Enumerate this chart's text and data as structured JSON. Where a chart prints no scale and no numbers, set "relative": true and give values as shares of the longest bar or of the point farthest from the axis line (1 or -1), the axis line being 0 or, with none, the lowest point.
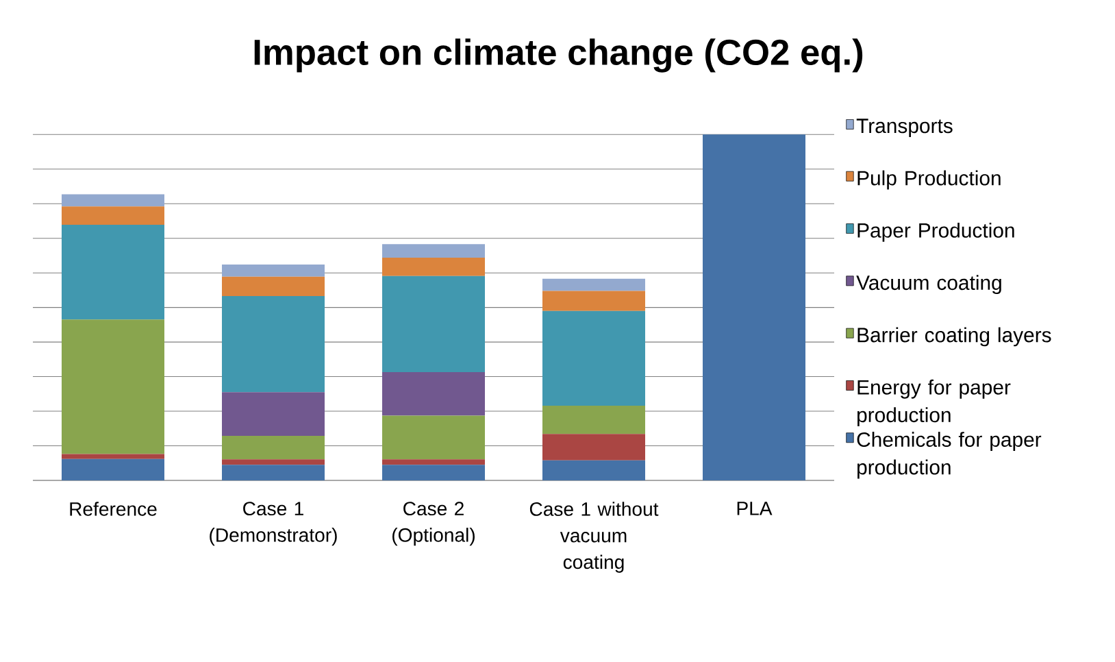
{
  "chart_data": {
    "type": "bar",
    "title": "Impact on climate change (CO2 eq.)",
    "stacked": true,
    "relative": true,
    "grid": "y",
    "legend": "right",
    "categories": [
      "Reference",
      "Case 1 (Demonstrator)",
      "Case 2 (Optional)",
      "Case 1 without vacuum coating",
      "PLA"
    ],
    "series": [
      {
        "name": "Chemicals for paper production",
        "color": "#4572a7",
        "values": [
          0.062,
          0.045,
          0.045,
          0.058,
          1
        ]
      },
      {
        "name": "Energy for paper production",
        "color": "#aa4643",
        "values": [
          0.014,
          0.016,
          0.016,
          0.076,
          0
        ]
      },
      {
        "name": "Barrier coating layers",
        "color": "#89a54e",
        "values": [
          0.389,
          0.068,
          0.126,
          0.082,
          0
        ]
      },
      {
        "name": "Vacuum coating",
        "color": "#71588f",
        "values": [
          0,
          0.126,
          0.126,
          0,
          0
        ]
      },
      {
        "name": "Paper Production",
        "color": "#4198af",
        "values": [
          0.274,
          0.278,
          0.278,
          0.274,
          0
        ]
      },
      {
        "name": "Pulp Production",
        "color": "#db843d",
        "values": [
          0.053,
          0.056,
          0.053,
          0.058,
          0
        ]
      },
      {
        "name": "Transports",
        "color": "#93a9cf",
        "values": [
          0.035,
          0.035,
          0.039,
          0.035,
          0
        ]
      }
    ]
  }
}
